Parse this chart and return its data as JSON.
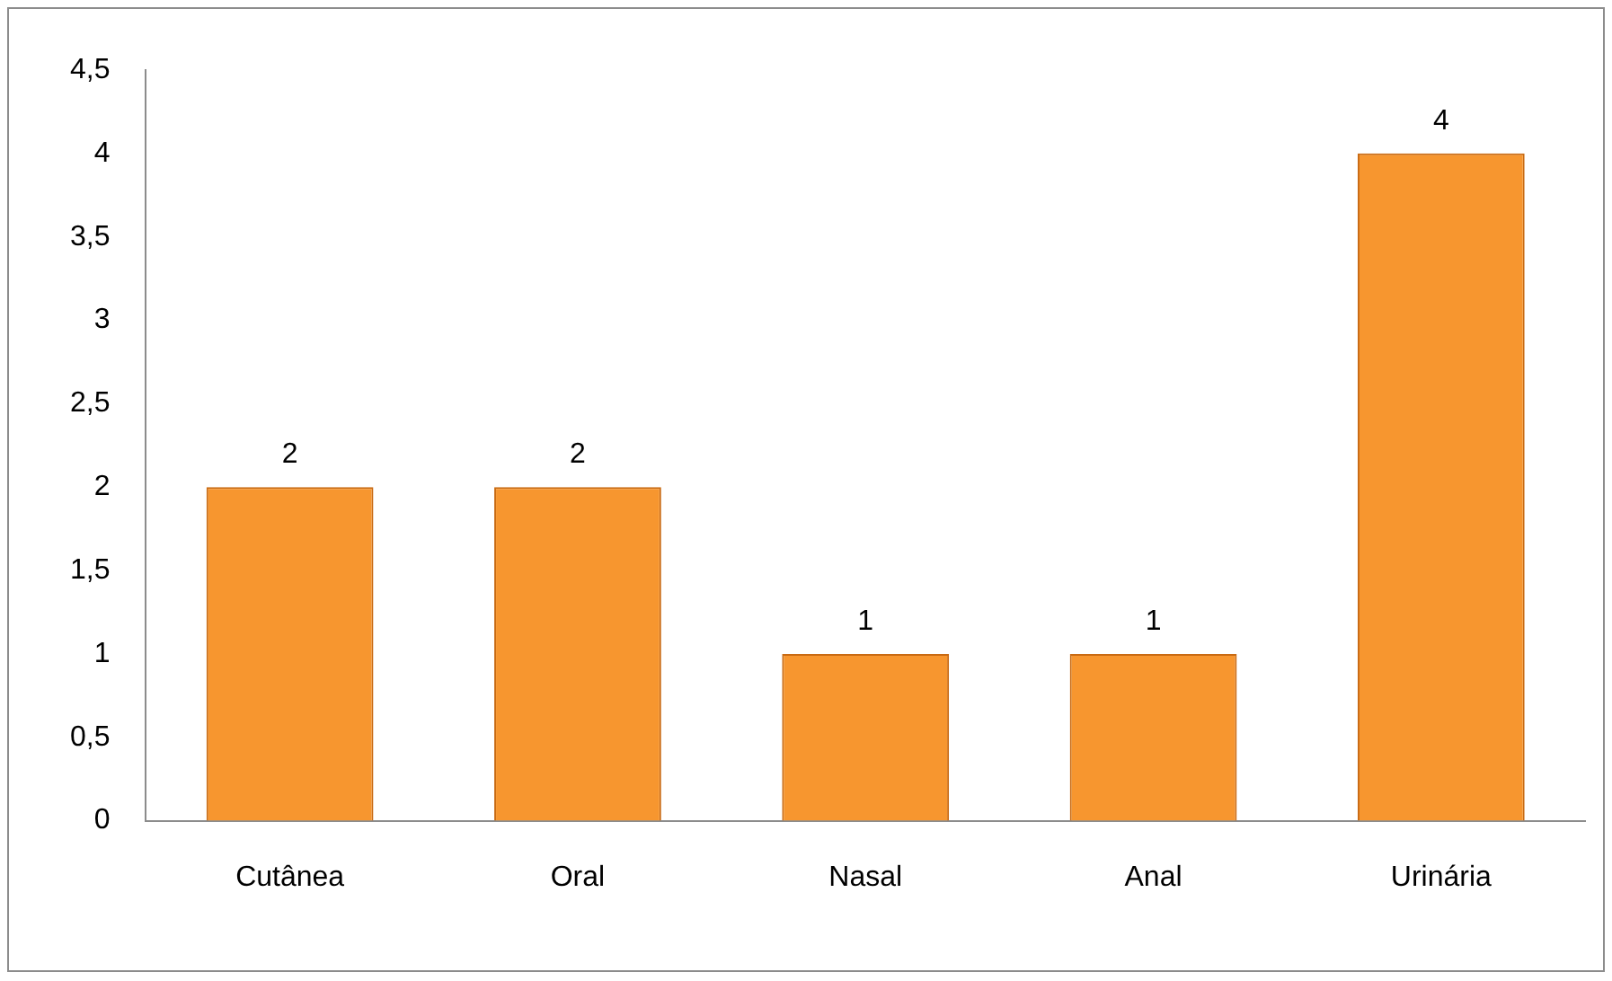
{
  "chart_data": {
    "type": "bar",
    "categories": [
      "Cutânea",
      "Oral",
      "Nasal",
      "Anal",
      "Urinária"
    ],
    "values": [
      2,
      2,
      1,
      1,
      4
    ],
    "color": "#f7962f",
    "ylim": [
      0,
      4.5
    ],
    "yticks": [
      0,
      {
        "value": 0.5,
        "label": "0,5"
      },
      1,
      {
        "value": 1.5,
        "label": "1,5"
      },
      2,
      {
        "value": 2.5,
        "label": "2,5"
      },
      3,
      {
        "value": 3.5,
        "label": "3,5"
      },
      4,
      {
        "value": 4.5,
        "label": "4,5"
      }
    ],
    "grid": false,
    "legend": false,
    "data_labels": true
  }
}
